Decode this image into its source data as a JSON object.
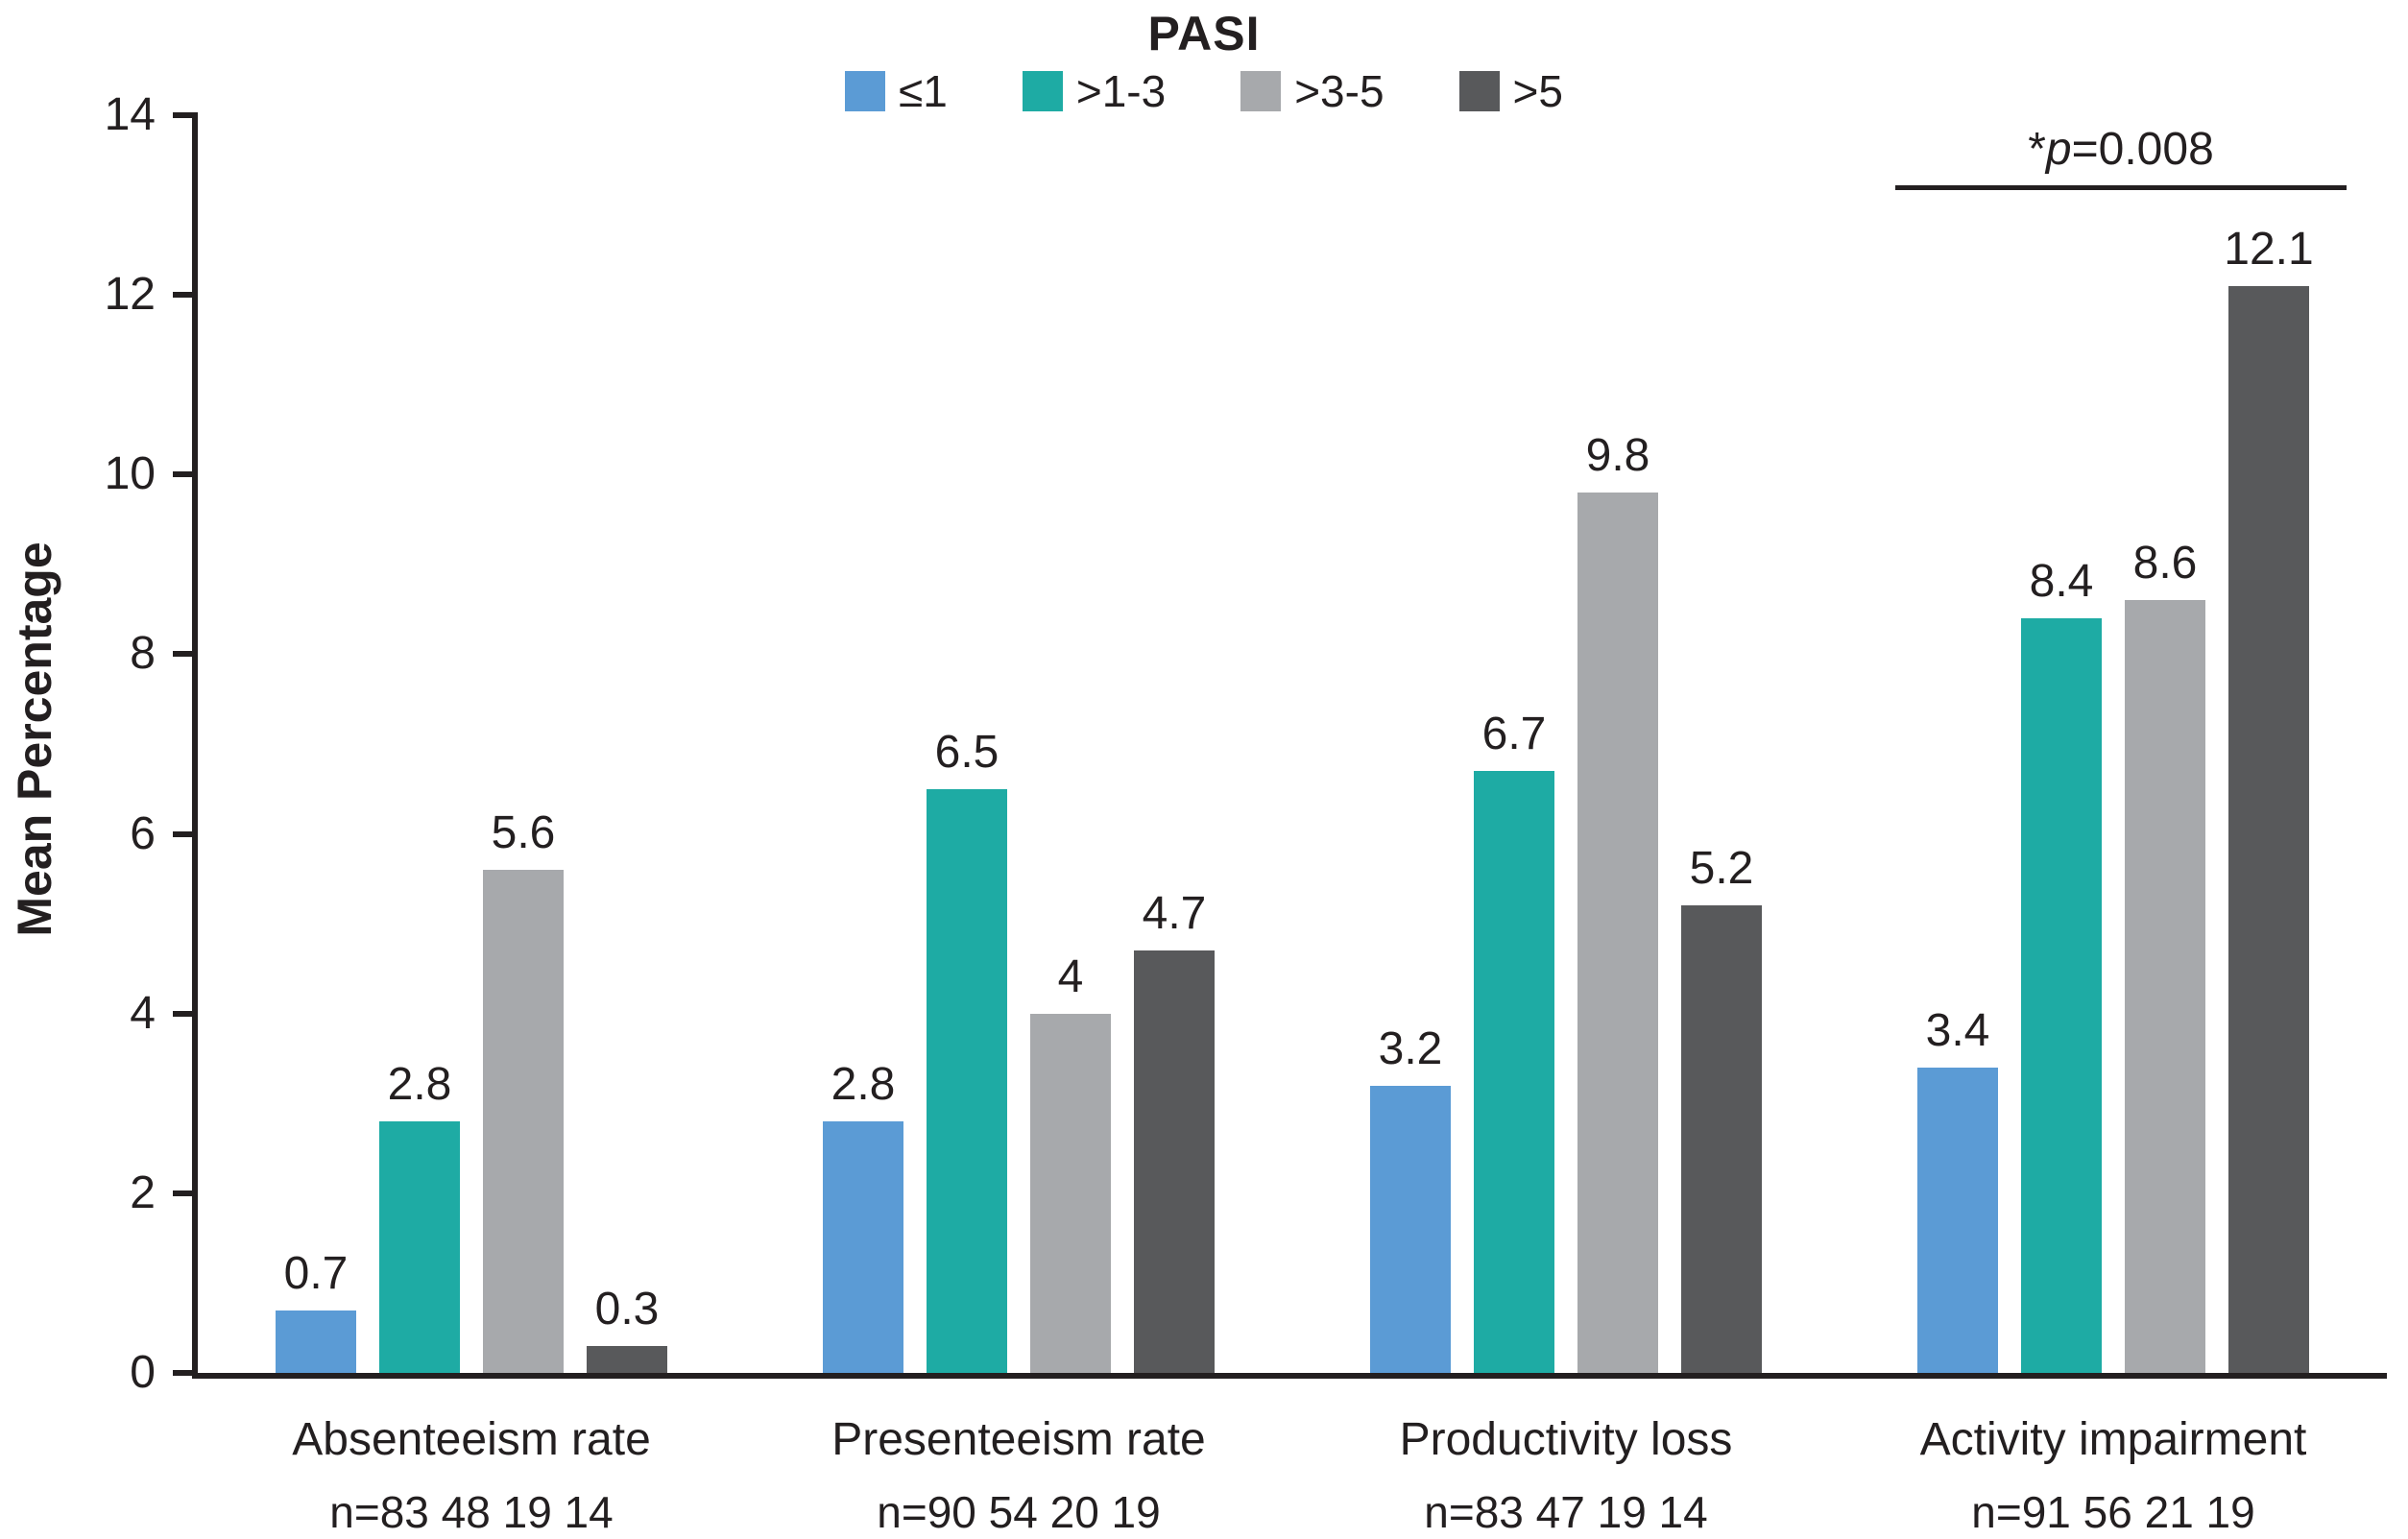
{
  "chart_data": {
    "type": "bar",
    "title": "PASI",
    "xlabel": "",
    "ylabel": "Mean Percentage",
    "ylim": [
      0,
      14
    ],
    "yticks": [
      0,
      2,
      4,
      6,
      8,
      10,
      12,
      14
    ],
    "grid": false,
    "legend_position": "top-center",
    "series_labels": [
      "≤1",
      ">1-3",
      ">3-5",
      ">5"
    ],
    "series_colors": [
      "#5b9bd5",
      "#1eaba4",
      "#a7a9ac",
      "#58595b"
    ],
    "categories": [
      "Absenteeism rate",
      "Presenteeism rate",
      "Productivity loss",
      "Activity impairment"
    ],
    "n_labels": [
      "n=83 48 19 14",
      "n=90 54 20 19",
      "n=83 47 19 14",
      "n=91 56 21 19"
    ],
    "series": [
      {
        "name": "≤1",
        "values": [
          0.7,
          2.8,
          3.2,
          3.4
        ]
      },
      {
        "name": ">1-3",
        "values": [
          2.8,
          6.5,
          6.7,
          8.4
        ]
      },
      {
        "name": ">3-5",
        "values": [
          5.6,
          4.0,
          9.8,
          8.6
        ]
      },
      {
        "name": ">5",
        "values": [
          0.3,
          4.7,
          5.2,
          12.1
        ]
      }
    ],
    "value_labels": [
      [
        "0.7",
        "2.8",
        "5.6",
        "0.3"
      ],
      [
        "2.8",
        "6.5",
        "4",
        "4.7"
      ],
      [
        "3.2",
        "6.7",
        "9.8",
        "5.2"
      ],
      [
        "3.4",
        "8.4",
        "8.6",
        "12.1"
      ]
    ],
    "annotation": {
      "star": "*",
      "symbol": "p",
      "rest": "=0.008",
      "category": "Activity impairment"
    },
    "axis_color": "#231f20"
  }
}
